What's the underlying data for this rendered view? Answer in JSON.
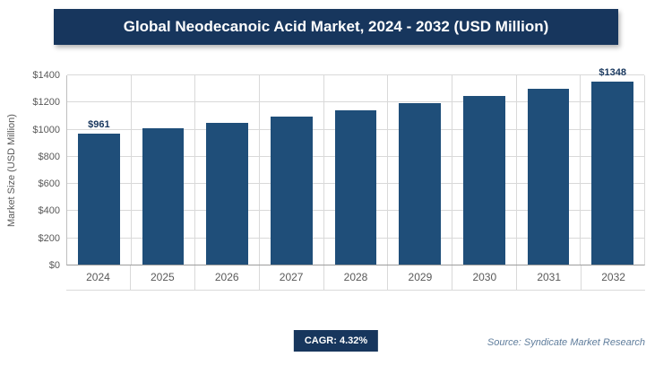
{
  "header": {
    "title": "Global Neodecanoic Acid Market, 2024 - 2032 (USD Million)"
  },
  "chart_data": {
    "type": "bar",
    "title": "Global Neodecanoic Acid Market, 2024 - 2032 (USD Million)",
    "categories": [
      "2024",
      "2025",
      "2026",
      "2027",
      "2028",
      "2029",
      "2030",
      "2031",
      "2032"
    ],
    "values": [
      961,
      1003,
      1046,
      1091,
      1138,
      1187,
      1239,
      1292,
      1348
    ],
    "bar_labels": [
      "$961",
      "",
      "",
      "",
      "",
      "",
      "",
      "",
      "$1348"
    ],
    "xlabel": "",
    "ylabel": "Market Size (USD Million)",
    "ylim": [
      0,
      1400
    ],
    "grid": true,
    "legend": "none",
    "bar_color": "#1F4E79",
    "yticks": [
      {
        "value": 0,
        "label": "$0"
      },
      {
        "value": 200,
        "label": "$200"
      },
      {
        "value": 400,
        "label": "$400"
      },
      {
        "value": 600,
        "label": "$600"
      },
      {
        "value": 800,
        "label": "$800"
      },
      {
        "value": 1000,
        "label": "$1000"
      },
      {
        "value": 1200,
        "label": "$1200"
      },
      {
        "value": 1400,
        "label": "$1400"
      }
    ]
  },
  "footer": {
    "cagr_label": "CAGR: 4.32%",
    "source": "Source: Syndicate Market Research"
  },
  "colors": {
    "header_bg": "#17365d",
    "bar": "#1F4E79",
    "axis_text": "#595959",
    "gridline": "#d9d9d9",
    "source_text": "#5f7d9c"
  }
}
